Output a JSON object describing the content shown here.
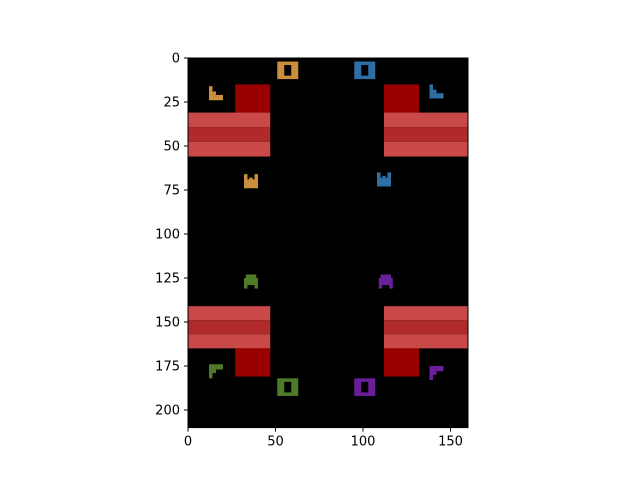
{
  "figure": {
    "x_ticks": [
      "0",
      "50",
      "100",
      "150"
    ],
    "y_ticks": [
      "0",
      "25",
      "50",
      "75",
      "100",
      "125",
      "150",
      "175",
      "200"
    ],
    "x_tick_values": [
      0,
      50,
      100,
      150
    ],
    "y_tick_values": [
      0,
      25,
      50,
      75,
      100,
      125,
      150,
      175,
      200
    ],
    "xlim": [
      0,
      160
    ],
    "ylim": [
      210,
      0
    ],
    "grid": false
  },
  "game": {
    "background": "#000000",
    "wall_colors": {
      "dark": "#990000",
      "stripe_light": "#c94848",
      "stripe_dark": "#b02a2a"
    },
    "player_colors": {
      "orange": "#c98f3c",
      "blue": "#2f6fa3",
      "green": "#4e7a2a",
      "purple": "#6a1f9a"
    },
    "walls": [
      {
        "corner": "top-left",
        "block": [
          [
            27,
            15
          ],
          [
            47,
            31
          ]
        ],
        "stripes": [
          [
            0,
            31
          ],
          [
            47,
            56
          ]
        ]
      },
      {
        "corner": "top-right",
        "block": [
          [
            112,
            15
          ],
          [
            132,
            31
          ]
        ],
        "stripes": [
          [
            112,
            31
          ],
          [
            160,
            56
          ]
        ]
      },
      {
        "corner": "bottom-left",
        "block": [
          [
            27,
            165
          ],
          [
            47,
            181
          ]
        ],
        "stripes": [
          [
            0,
            141
          ],
          [
            47,
            165
          ]
        ]
      },
      {
        "corner": "bottom-right",
        "block": [
          [
            112,
            165
          ],
          [
            132,
            181
          ]
        ],
        "stripes": [
          [
            112,
            141
          ],
          [
            160,
            165
          ]
        ]
      }
    ],
    "kings": [
      {
        "color": "orange",
        "center": [
          57,
          7
        ]
      },
      {
        "color": "blue",
        "center": [
          101,
          7
        ]
      },
      {
        "color": "green",
        "center": [
          57,
          187
        ]
      },
      {
        "color": "purple",
        "center": [
          101,
          187
        ]
      }
    ],
    "shields": [
      {
        "color": "orange",
        "anchor": [
          12,
          16
        ],
        "flip_x": false,
        "flip_y": false
      },
      {
        "color": "blue",
        "anchor": [
          138,
          15
        ],
        "flip_x": false,
        "flip_y": false
      },
      {
        "color": "green",
        "anchor": [
          12,
          174
        ],
        "flip_x": false,
        "flip_y": true
      },
      {
        "color": "purple",
        "anchor": [
          138,
          175
        ],
        "flip_x": false,
        "flip_y": true
      }
    ],
    "ships": [
      {
        "color": "orange",
        "center": [
          36,
          70
        ],
        "shape": "cup"
      },
      {
        "color": "blue",
        "center": [
          112,
          69
        ],
        "shape": "cup"
      },
      {
        "color": "green",
        "center": [
          36,
          127
        ],
        "shape": "arch"
      },
      {
        "color": "purple",
        "center": [
          113,
          127
        ],
        "shape": "arch"
      }
    ]
  }
}
